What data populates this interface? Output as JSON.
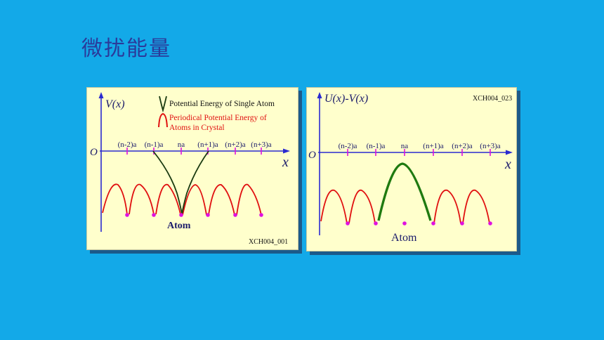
{
  "slide": {
    "title": "微扰能量"
  },
  "left_panel": {
    "y_axis_label": "V(x)",
    "x_axis_label": "x",
    "origin_label": "O",
    "legend_single": "Potential Energy of Single Atom",
    "legend_periodic_line1": "Periodical Potential Energy of",
    "legend_periodic_line2": "Atoms in Crystal",
    "ticks": [
      "(n-2)a",
      "(n-1)a",
      "na",
      "(n+1)a",
      "(n+2)a",
      "(n+3)a"
    ],
    "atom_label": "Atom",
    "code": "XCH004_001"
  },
  "right_panel": {
    "y_axis_label": "U(x)-V(x)",
    "x_axis_label": "x",
    "origin_label": "O",
    "ticks": [
      "(n-2)a",
      "(n-1)a",
      "na",
      "(n+1)a",
      "(n+2)a",
      "(n+3)a"
    ],
    "atom_label": "Atom",
    "code": "XCH004_023"
  },
  "colors": {
    "axis": "#2a2ad0",
    "periodic": "#e01010",
    "single": "#1a3a10",
    "perturbation": "#1f7a10",
    "atom_dot": "#e010e0",
    "label": "#1a1a6a"
  }
}
